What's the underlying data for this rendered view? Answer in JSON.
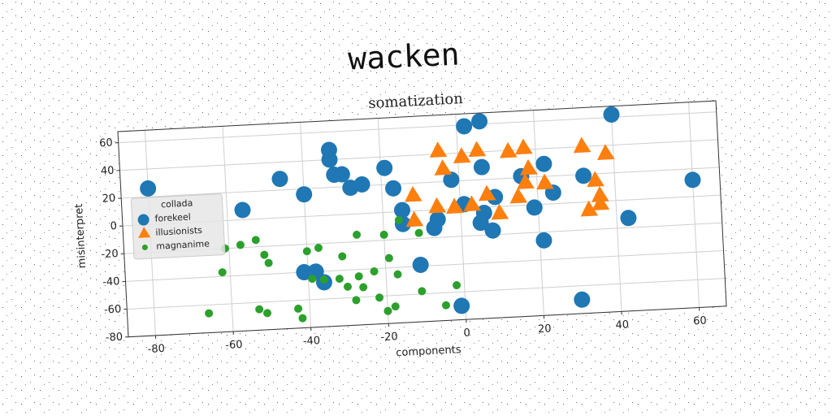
{
  "chart_data": {
    "type": "scatter",
    "suptitle": "wacken",
    "title": "somatization",
    "xlabel": "components",
    "ylabel": "misinterpret",
    "xlim": [
      -87,
      67
    ],
    "ylim": [
      -80,
      68
    ],
    "xticks": [
      -80,
      -60,
      -40,
      -20,
      0,
      20,
      40,
      60
    ],
    "yticks": [
      -80,
      -60,
      -40,
      -20,
      0,
      20,
      40,
      60
    ],
    "grid": true,
    "legend": {
      "title": "collada",
      "loc": "center left"
    },
    "series": [
      {
        "name": "forekeel",
        "color": "#1f77b4",
        "marker": "circle",
        "x": [
          -80,
          -56,
          -46,
          -40,
          -33,
          -33,
          -32,
          -30,
          -28,
          -25,
          -19,
          -17,
          -15,
          -15,
          -7,
          -6,
          -2,
          2,
          6,
          6,
          1,
          5,
          8,
          9,
          16,
          19,
          22,
          21,
          24,
          32,
          40,
          43,
          60,
          -41,
          -38,
          -36,
          -11,
          -1,
          30,
          6
        ],
        "values": [
          26,
          7,
          28,
          16,
          47,
          40,
          29,
          29,
          19,
          21,
          32,
          17,
          1,
          -9,
          -13,
          -7,
          21,
          59,
          62,
          29,
          3,
          -11,
          -17,
          7,
          21,
          -2,
          29,
          -26,
          8,
          19,
          62,
          -13,
          12,
          -40,
          -40,
          -48,
          -39,
          -70,
          -70,
          -4
        ]
      },
      {
        "name": "illusionists",
        "color": "#ff7f0e",
        "marker": "triangle",
        "x": [
          -5,
          -4,
          1,
          5,
          13,
          17,
          -12,
          -12,
          -6,
          -1.5,
          3,
          7,
          10,
          15,
          17,
          18,
          22,
          32,
          38,
          35,
          36,
          36,
          33
        ],
        "values": [
          42,
          29,
          37,
          41,
          39,
          41,
          11,
          -7,
          2,
          1,
          2,
          9,
          -5,
          6,
          16,
          26,
          15,
          40,
          34,
          15,
          4,
          -2,
          -6
        ]
      },
      {
        "name": "magnanime",
        "color": "#2ca02c",
        "marker": "small-circle",
        "x": [
          -66,
          -62,
          -61,
          -57,
          -53,
          -51,
          -50,
          -53,
          -51,
          -43,
          -42,
          -40,
          -39,
          -37,
          -36,
          -32,
          -31,
          -30,
          -27,
          -28,
          -27,
          -26,
          -23,
          -22,
          -20,
          -19,
          -20,
          -18,
          -17,
          -16,
          -11,
          -11,
          -5,
          -2
        ],
        "values": [
          -66,
          -37,
          -20,
          -18,
          -15,
          -26,
          -32,
          -65,
          -68,
          -66,
          -73,
          -25,
          -45,
          -23,
          -46,
          -46,
          -30,
          -52,
          -15,
          -62,
          -45,
          -53,
          -42,
          -61,
          -16,
          -33,
          -71,
          -68,
          -45,
          -6,
          -16,
          -58,
          -69,
          -55
        ]
      }
    ]
  }
}
